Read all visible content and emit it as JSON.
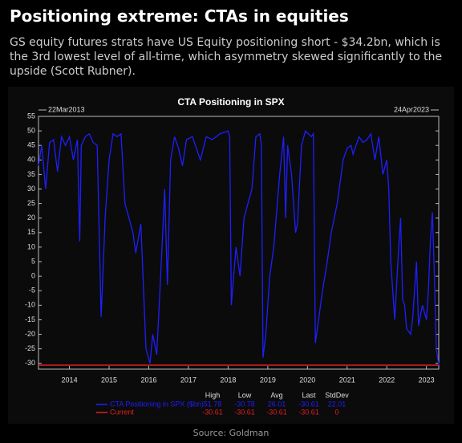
{
  "title": "Positioning extreme: CTAs in equities",
  "description": "GS equity futures strats have US Equity positioning short - $34.2bn, which is the 3rd lowest level of all-time, which asymmetry skewed significantly to the upside (Scott Rubner).",
  "source": "Source: Goldman",
  "chart_data": {
    "type": "line",
    "title": "CTA Positioning in SPX",
    "start_label": "22Mar2013",
    "end_label": "24Apr2023",
    "xlim": [
      2013.22,
      2023.31
    ],
    "xticks": [
      2014,
      2015,
      2016,
      2017,
      2018,
      2019,
      2020,
      2021,
      2022,
      2023
    ],
    "ylim": [
      -32,
      55
    ],
    "yticks": [
      -30,
      -25,
      -20,
      -15,
      -10,
      -5,
      0,
      5,
      10,
      15,
      20,
      25,
      30,
      35,
      40,
      45,
      50,
      55
    ],
    "x": [
      2013.22,
      2013.3,
      2013.4,
      2013.5,
      2013.6,
      2013.7,
      2013.8,
      2013.9,
      2014.0,
      2014.1,
      2014.2,
      2014.26,
      2014.3,
      2014.4,
      2014.5,
      2014.6,
      2014.7,
      2014.8,
      2014.9,
      2015.0,
      2015.1,
      2015.2,
      2015.3,
      2015.4,
      2015.5,
      2015.6,
      2015.67,
      2015.8,
      2015.93,
      2016.03,
      2016.1,
      2016.2,
      2016.3,
      2016.4,
      2016.47,
      2016.55,
      2016.65,
      2016.75,
      2016.85,
      2016.95,
      2017.1,
      2017.3,
      2017.45,
      2017.6,
      2017.8,
      2018.0,
      2018.04,
      2018.08,
      2018.2,
      2018.3,
      2018.4,
      2018.5,
      2018.6,
      2018.7,
      2018.8,
      2018.84,
      2018.88,
      2018.95,
      2019.05,
      2019.15,
      2019.3,
      2019.4,
      2019.45,
      2019.5,
      2019.6,
      2019.7,
      2019.75,
      2019.85,
      2019.95,
      2020.1,
      2020.15,
      2020.2,
      2020.28,
      2020.38,
      2020.5,
      2020.6,
      2020.75,
      2020.9,
      2021.0,
      2021.1,
      2021.15,
      2021.3,
      2021.4,
      2021.5,
      2021.6,
      2021.7,
      2021.8,
      2021.9,
      2022.0,
      2022.05,
      2022.1,
      2022.2,
      2022.3,
      2022.35,
      2022.4,
      2022.45,
      2022.5,
      2022.6,
      2022.65,
      2022.7,
      2022.75,
      2022.8,
      2022.9,
      2023.0,
      2023.05,
      2023.1,
      2023.15,
      2023.2,
      2023.25,
      2023.31
    ],
    "series": [
      {
        "name": "CTA Positioning in SPX ($bn)",
        "color": "#1f1fff",
        "values": [
          38,
          45,
          30,
          46,
          47,
          36,
          48,
          45,
          48,
          40,
          47,
          12,
          45,
          48,
          49,
          46,
          45,
          -14,
          20,
          40,
          49,
          48,
          49,
          25,
          20,
          15,
          8,
          18,
          -25,
          -30,
          -20,
          -27,
          0,
          30,
          -3,
          40,
          48,
          44,
          38,
          47,
          48,
          40,
          48,
          47,
          49,
          50,
          48,
          -10,
          10,
          0,
          20,
          25,
          30,
          48,
          49,
          45,
          -28,
          -20,
          0,
          10,
          35,
          48,
          20,
          45,
          35,
          15,
          18,
          45,
          50,
          48,
          49,
          -23,
          -15,
          -5,
          5,
          15,
          25,
          40,
          44,
          45,
          42,
          48,
          46,
          47,
          49,
          40,
          48,
          35,
          40,
          30,
          5,
          -15,
          10,
          20,
          -8,
          -10,
          -18,
          -20,
          -15,
          -5,
          5,
          -17,
          -10,
          -15,
          -5,
          12,
          22,
          0,
          -25,
          -30.61
        ],
        "stats": [
          51.78,
          -30.78,
          26.01,
          -30.61,
          22.01
        ]
      }
    ],
    "current": {
      "name": "Current",
      "color": "#e02020",
      "value": -30.61,
      "stats": [
        -30.61,
        -30.61,
        -30.61,
        -30.61,
        0
      ]
    },
    "stats_headers": [
      "High",
      "Low",
      "Avg",
      "Last",
      "StdDev"
    ]
  }
}
